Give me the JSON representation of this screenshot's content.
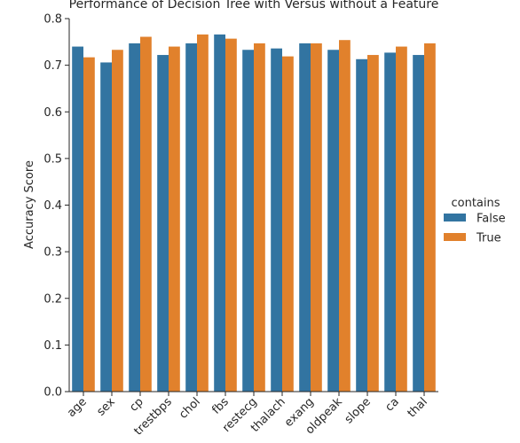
{
  "chart_data": {
    "type": "bar",
    "title": "Performance of Decision Tree with Versus without a Feature",
    "xlabel": "",
    "ylabel": "Accuracy Score",
    "ylim": [
      0.0,
      0.8
    ],
    "yticks": [
      "0.0",
      "0.1",
      "0.2",
      "0.3",
      "0.4",
      "0.5",
      "0.6",
      "0.7",
      "0.8"
    ],
    "categories": [
      "age",
      "sex",
      "cp",
      "trestbps",
      "chol",
      "fbs",
      "restecg",
      "thalach",
      "exang",
      "oldpeak",
      "slope",
      "ca",
      "thal"
    ],
    "series": [
      {
        "name": "False",
        "color": "#3274a1",
        "values": [
          0.74,
          0.706,
          0.747,
          0.722,
          0.747,
          0.766,
          0.733,
          0.736,
          0.747,
          0.733,
          0.713,
          0.727,
          0.722
        ]
      },
      {
        "name": "True",
        "color": "#e1812c",
        "values": [
          0.717,
          0.733,
          0.761,
          0.74,
          0.766,
          0.757,
          0.747,
          0.719,
          0.747,
          0.754,
          0.722,
          0.74,
          0.747
        ]
      }
    ],
    "legend": {
      "title": "contains",
      "placement": "right"
    },
    "grid": false
  }
}
